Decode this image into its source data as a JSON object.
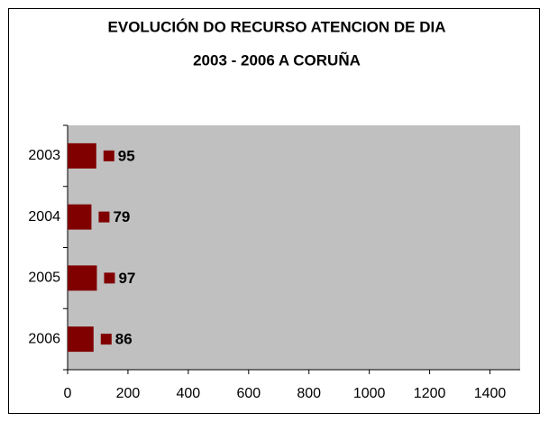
{
  "chart_data": {
    "type": "bar",
    "orientation": "horizontal",
    "title": [
      "EVOLUCIÓN DO RECURSO ATENCION DE DIA",
      "2003 - 2006 A CORUÑA"
    ],
    "categories": [
      "2003",
      "2004",
      "2005",
      "2006"
    ],
    "values": [
      95,
      79,
      97,
      86
    ],
    "color": "#800000",
    "xlim": [
      0,
      1500
    ],
    "xticks": [
      0,
      200,
      400,
      600,
      800,
      1000,
      1200,
      1400
    ],
    "plot_background": "#c0c0c0"
  }
}
